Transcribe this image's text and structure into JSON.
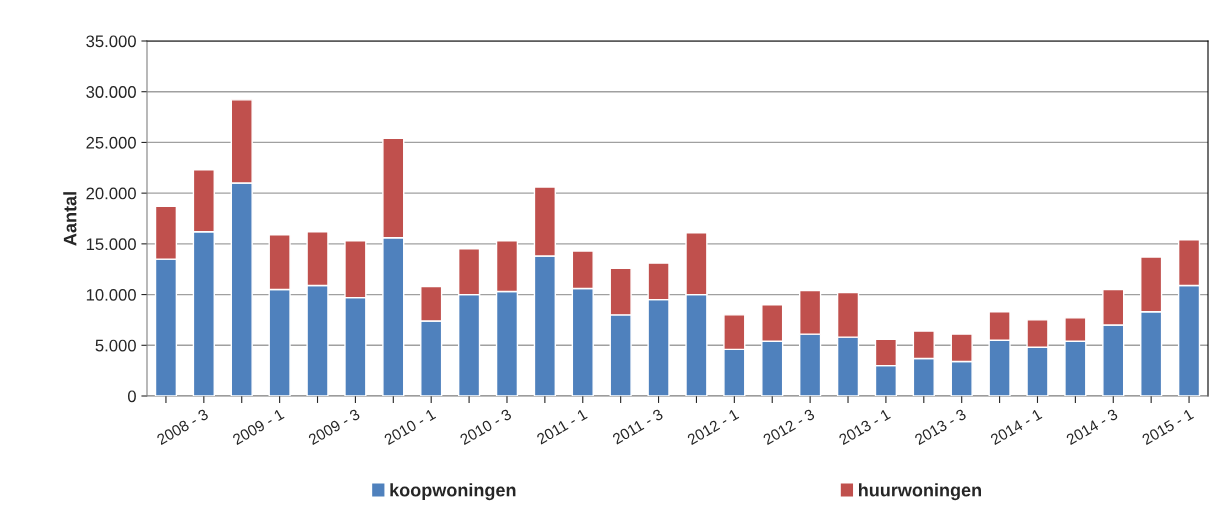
{
  "chart_data": {
    "type": "bar",
    "stacked": true,
    "ylabel": "Aantal",
    "categories": [
      null,
      "2008 - 3",
      null,
      "2009 - 1",
      null,
      "2009 - 3",
      null,
      "2010 - 1",
      null,
      "2010 - 3",
      null,
      "2011 - 1",
      null,
      "2011 - 3",
      null,
      "2012 - 1",
      null,
      "2012 - 3",
      null,
      "2013 - 1",
      null,
      "2013 - 3",
      null,
      "2014 - 1",
      null,
      "2014 - 3",
      null,
      "2015 - 1"
    ],
    "series": [
      {
        "name": "koopwoningen",
        "color": "#4f81bd",
        "values": [
          13500,
          16200,
          21000,
          10500,
          10900,
          9700,
          15600,
          7400,
          10000,
          10300,
          13800,
          10600,
          8000,
          9500,
          10000,
          4600,
          5400,
          6100,
          5800,
          3000,
          3700,
          3400,
          5500,
          4800,
          5400,
          7000,
          8300,
          10900
        ]
      },
      {
        "name": "huurwoningen",
        "color": "#c0504d",
        "values": [
          5200,
          6100,
          8200,
          5400,
          5300,
          5600,
          9800,
          3400,
          4500,
          5000,
          6800,
          3700,
          4600,
          3600,
          6100,
          3400,
          3600,
          4300,
          4400,
          2600,
          2700,
          2700,
          2800,
          2700,
          2300,
          3500,
          5400,
          4500
        ]
      }
    ],
    "ylim": [
      0,
      35000
    ],
    "yticks": [
      0,
      {
        "value": 5000,
        "label": "5.000"
      },
      {
        "value": 10000,
        "label": "10.000"
      },
      {
        "value": 15000,
        "label": "15.000"
      },
      {
        "value": 20000,
        "label": "20.000"
      },
      {
        "value": 25000,
        "label": "25.000"
      },
      {
        "value": 30000,
        "label": "30.000"
      },
      {
        "value": 35000,
        "label": "35.000"
      }
    ],
    "grid": "y",
    "legend": "bottom"
  }
}
